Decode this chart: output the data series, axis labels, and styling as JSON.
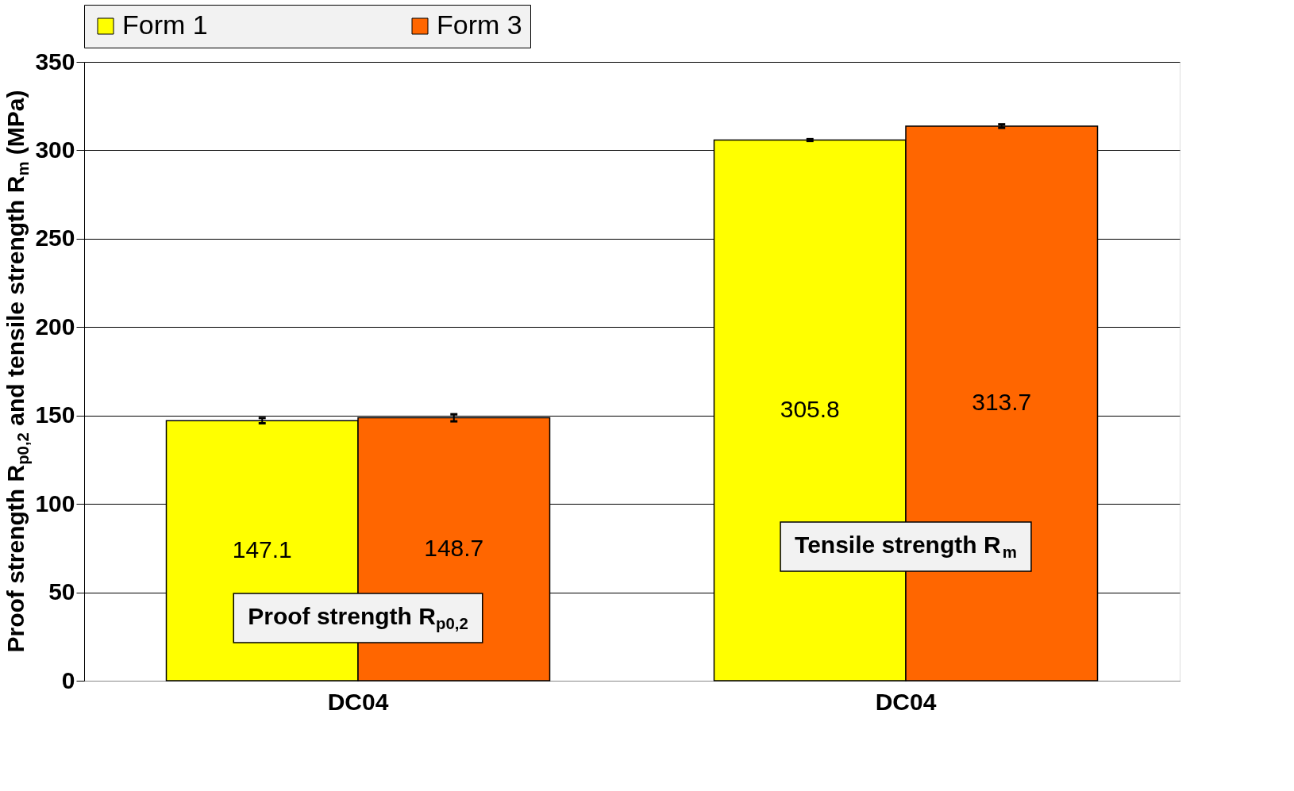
{
  "chart_data": {
    "type": "bar",
    "ylabel": "Proof strength R$_{p0,2}$ and tensile strength R$_{m}$ (MPa)",
    "categories": [
      "DC04",
      "DC04"
    ],
    "series": [
      {
        "name": "Form 1",
        "color": "#ffff00",
        "values": [
          147.1,
          305.8
        ],
        "errors": [
          1.5,
          0.5
        ]
      },
      {
        "name": "Form 3",
        "color": "#ff6600",
        "values": [
          148.7,
          313.7
        ],
        "errors": [
          2,
          1
        ]
      }
    ],
    "ylim": [
      0,
      350
    ],
    "yticks": [
      0,
      50,
      100,
      150,
      200,
      250,
      300,
      350
    ],
    "grid": "y",
    "legend": "top",
    "data_labels": true,
    "annotations": [
      "Proof strength R$_{p0,2}$",
      "Tensile strength R$_{m}$"
    ]
  }
}
